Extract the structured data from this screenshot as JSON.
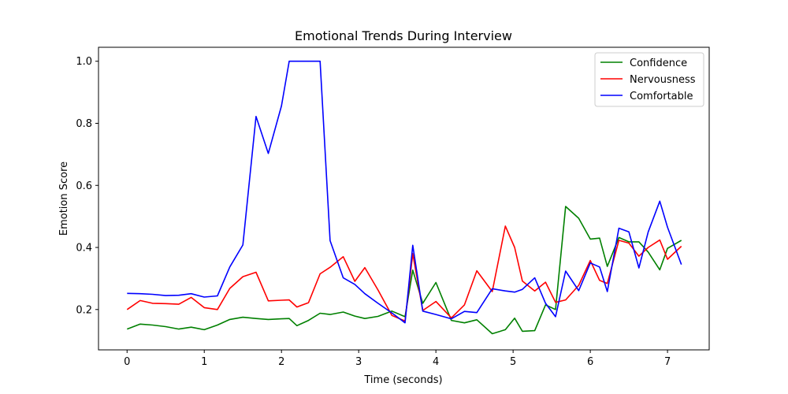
{
  "chart_data": {
    "type": "line",
    "title": "Emotional Trends During Interview",
    "xlabel": "Time (seconds)",
    "ylabel": "Emotion Score",
    "xlim": [
      -0.37,
      7.54
    ],
    "ylim": [
      0.07,
      1.045
    ],
    "xticks": [
      0,
      1,
      2,
      3,
      4,
      5,
      6,
      7
    ],
    "yticks": [
      0.2,
      0.4,
      0.6,
      0.8,
      1.0
    ],
    "ytick_labels": [
      "0.2",
      "0.4",
      "0.6",
      "0.8",
      "1.0"
    ],
    "grid": false,
    "legend_position": "top-right",
    "x": [
      0,
      0.17,
      0.33,
      0.5,
      0.67,
      0.83,
      1.0,
      1.17,
      1.33,
      1.5,
      1.67,
      1.83,
      2.0,
      2.1,
      2.2,
      2.35,
      2.5,
      2.63,
      2.8,
      2.95,
      3.08,
      3.25,
      3.43,
      3.6,
      3.7,
      3.83,
      4.0,
      4.2,
      4.37,
      4.53,
      4.73,
      4.9,
      5.02,
      5.12,
      5.28,
      5.42,
      5.55,
      5.68,
      5.85,
      6.0,
      6.12,
      6.22,
      6.37,
      6.5,
      6.63,
      6.75,
      6.9,
      7.0,
      7.18
    ],
    "series": [
      {
        "name": "Confidence",
        "color": "#008000",
        "values": [
          0.137,
          0.153,
          0.15,
          0.145,
          0.137,
          0.143,
          0.135,
          0.15,
          0.168,
          0.175,
          0.171,
          0.168,
          0.17,
          0.171,
          0.148,
          0.165,
          0.188,
          0.184,
          0.192,
          0.179,
          0.171,
          0.178,
          0.195,
          0.177,
          0.327,
          0.22,
          0.287,
          0.165,
          0.157,
          0.167,
          0.122,
          0.135,
          0.172,
          0.13,
          0.132,
          0.215,
          0.2,
          0.532,
          0.494,
          0.427,
          0.43,
          0.339,
          0.432,
          0.418,
          0.418,
          0.385,
          0.328,
          0.397,
          0.423
        ]
      },
      {
        "name": "Nervousness",
        "color": "#ff0000",
        "values": [
          0.2,
          0.229,
          0.22,
          0.219,
          0.217,
          0.239,
          0.206,
          0.2,
          0.268,
          0.306,
          0.32,
          0.228,
          0.23,
          0.231,
          0.208,
          0.222,
          0.315,
          0.336,
          0.37,
          0.291,
          0.335,
          0.263,
          0.181,
          0.163,
          0.38,
          0.197,
          0.226,
          0.173,
          0.215,
          0.325,
          0.258,
          0.469,
          0.4,
          0.292,
          0.26,
          0.288,
          0.223,
          0.231,
          0.278,
          0.358,
          0.294,
          0.284,
          0.423,
          0.414,
          0.372,
          0.4,
          0.424,
          0.362,
          0.404
        ]
      },
      {
        "name": "Comfortable",
        "color": "#0000ff",
        "values": [
          0.252,
          0.251,
          0.249,
          0.245,
          0.246,
          0.251,
          0.24,
          0.244,
          0.337,
          0.408,
          0.822,
          0.703,
          0.856,
          1.0,
          1.0,
          1.0,
          1.0,
          0.422,
          0.302,
          0.281,
          0.251,
          0.22,
          0.189,
          0.157,
          0.407,
          0.195,
          0.184,
          0.17,
          0.194,
          0.19,
          0.267,
          0.26,
          0.256,
          0.265,
          0.302,
          0.22,
          0.177,
          0.324,
          0.261,
          0.35,
          0.337,
          0.258,
          0.462,
          0.45,
          0.334,
          0.45,
          0.549,
          0.465,
          0.345
        ]
      }
    ]
  }
}
